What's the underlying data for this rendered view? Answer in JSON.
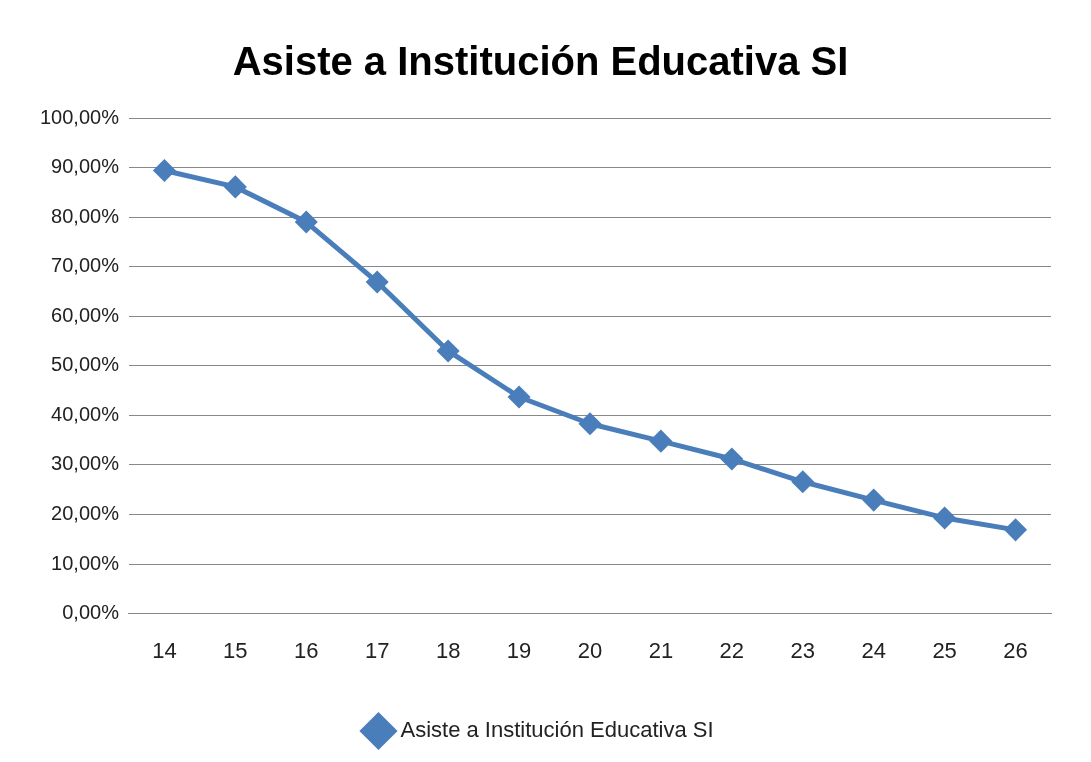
{
  "chart_data": {
    "type": "line",
    "title": "Asiste a Institución Educativa SI",
    "categories": [
      "14",
      "15",
      "16",
      "17",
      "18",
      "19",
      "20",
      "21",
      "22",
      "23",
      "24",
      "25",
      "26"
    ],
    "series": [
      {
        "name": "Asiste a Institución Educativa SI",
        "color": "#4a7ebb",
        "values": [
          89.4,
          86.1,
          79.0,
          66.9,
          53.0,
          43.7,
          38.3,
          34.8,
          31.2,
          26.6,
          22.9,
          19.3,
          16.9
        ]
      }
    ],
    "ylim": [
      0,
      100
    ],
    "yticks": [
      {
        "value": 0,
        "label": "0,00%"
      },
      {
        "value": 10,
        "label": "10,00%"
      },
      {
        "value": 20,
        "label": "20,00%"
      },
      {
        "value": 30,
        "label": "30,00%"
      },
      {
        "value": 40,
        "label": "40,00%"
      },
      {
        "value": 50,
        "label": "50,00%"
      },
      {
        "value": 60,
        "label": "60,00%"
      },
      {
        "value": 70,
        "label": "70,00%"
      },
      {
        "value": 80,
        "label": "80,00%"
      },
      {
        "value": 90,
        "label": "90,00%"
      },
      {
        "value": 100,
        "label": "100,00%"
      }
    ],
    "grid": "y",
    "legend": "bottom",
    "marker": "diamond",
    "line_style": "solid"
  }
}
